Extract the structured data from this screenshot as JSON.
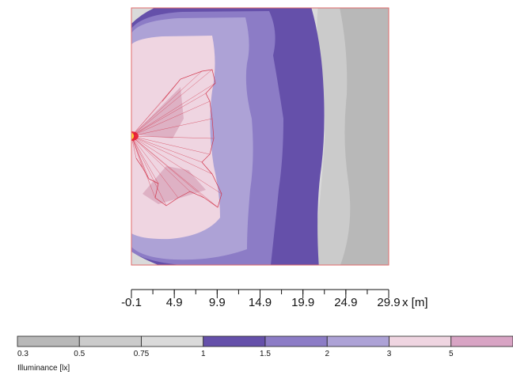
{
  "chart_data": {
    "type": "heatmap",
    "title": "",
    "xlabel": "x [m]",
    "x_ticks": [
      -0.1,
      4.9,
      9.9,
      14.9,
      19.9,
      24.9,
      29.9
    ],
    "x_tick_labels": [
      "-0.1",
      "4.9",
      "9.9",
      "14.9",
      "19.9",
      "24.9",
      "29.9"
    ],
    "x_range": [
      -0.1,
      29.9
    ],
    "minor_tick_step": 2.5,
    "colorbar": {
      "title": "Illuminance [lx]",
      "boundaries": [
        "0.3",
        "0.5",
        "0.75",
        "1",
        "1.5",
        "2",
        "3",
        "5",
        ""
      ],
      "colors": [
        "#b8b8b8",
        "#cbcbcb",
        "#dadada",
        "#6550aa",
        "#8c7cc6",
        "#ada2d6",
        "#efd5e1",
        "#d8a4c4"
      ],
      "placement": "bottom"
    },
    "bands_from_right": [
      {
        "level": "0.3-0.5",
        "color": "#b8b8b8"
      },
      {
        "level": "0.5-0.75",
        "color": "#cbcbcb"
      },
      {
        "level": "0.75-1",
        "color": "#dadada"
      },
      {
        "level": "1-1.5",
        "color": "#6550aa"
      },
      {
        "level": "1.5-2",
        "color": "#8c7cc6"
      },
      {
        "level": "2-3",
        "color": "#ada2d6"
      },
      {
        "level": "3-5",
        "color": "#efd5e1"
      }
    ],
    "source_marker": {
      "color": "#e8132a",
      "core_color": "#ffd43b"
    },
    "beam_outline_color": "#d2374d",
    "border_color": "#e06a6a"
  }
}
